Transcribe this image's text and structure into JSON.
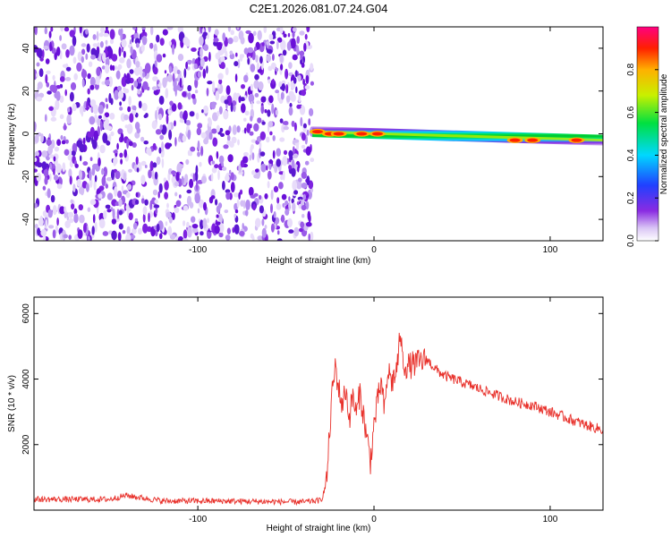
{
  "figure": {
    "title": "C2E1.2026.081.07.24.G04"
  },
  "chart_data": [
    {
      "type": "heatmap",
      "title": "C2E1.2026.081.07.24.G04",
      "xlabel": "Height of straight line (km)",
      "ylabel": "Frequency (Hz)",
      "xlim": [
        -193,
        130
      ],
      "ylim": [
        -50,
        50
      ],
      "x_ticks": [
        -100,
        0,
        100
      ],
      "x_tick_labels": [
        "-100",
        "0",
        "100"
      ],
      "y_ticks": [
        -40,
        -20,
        0,
        20,
        40
      ],
      "y_tick_labels": [
        "-40",
        "-20",
        "0",
        "20",
        "40"
      ],
      "colorbar": {
        "label": "Normalized spectral amplitude",
        "range": [
          0,
          1
        ],
        "ticks": [
          0.0,
          0.2,
          0.4,
          0.6,
          0.8
        ],
        "tick_labels": [
          "0.0",
          "0.2",
          "0.4",
          "0.6",
          "0.8"
        ],
        "colormap": "rainbow (white-violet-blue-cyan-green-yellow-red-magenta)"
      },
      "regions": [
        {
          "description": "speckled noise",
          "x_range": [
            -193,
            -35
          ],
          "freq_range": [
            -50,
            50
          ],
          "amplitude": 0.05
        },
        {
          "description": "signal band",
          "x_range": [
            -35,
            130
          ],
          "freq_center_start": 1,
          "freq_center_end": -3,
          "amplitude_peak": 0.95
        }
      ],
      "peaks": [
        {
          "x": -32,
          "freq": 1
        },
        {
          "x": -25,
          "freq": 0
        },
        {
          "x": -20,
          "freq": 0
        },
        {
          "x": -7,
          "freq": 0
        },
        {
          "x": 2,
          "freq": 0
        },
        {
          "x": 80,
          "freq": -3
        },
        {
          "x": 90,
          "freq": -3
        },
        {
          "x": 115,
          "freq": -3
        }
      ],
      "grid": false
    },
    {
      "type": "line",
      "xlabel": "Height of straight line (km)",
      "ylabel": "SNR (10 * v/v)",
      "xlim": [
        -193,
        130
      ],
      "ylim": [
        0,
        6500
      ],
      "x_ticks": [
        -100,
        0,
        100
      ],
      "x_tick_labels": [
        "-100",
        "0",
        "100"
      ],
      "y_ticks": [
        2000,
        4000,
        6000
      ],
      "y_tick_labels": [
        "2000",
        "4000",
        "6000"
      ],
      "color": "#e8302a",
      "series": [
        {
          "x": [
            -193,
            -150,
            -141,
            -120,
            -90,
            -60,
            -40,
            -30,
            -27,
            -24,
            -22,
            -20,
            -18,
            -16,
            -14,
            -12,
            -10,
            -8,
            -6,
            -4,
            -2,
            0,
            2,
            4,
            6,
            8,
            10,
            12,
            14,
            15,
            16,
            18,
            20,
            25,
            30,
            35,
            40,
            50,
            60,
            70,
            80,
            90,
            100,
            110,
            120,
            130
          ],
          "y": [
            330,
            330,
            450,
            280,
            280,
            260,
            250,
            300,
            800,
            3400,
            4400,
            3700,
            3200,
            3700,
            2800,
            3500,
            2900,
            3600,
            2900,
            2200,
            1500,
            2600,
            3300,
            3900,
            3000,
            4300,
            3900,
            4100,
            4700,
            5600,
            4600,
            4400,
            4400,
            4500,
            4600,
            4300,
            4100,
            3900,
            3700,
            3500,
            3300,
            3200,
            3000,
            2800,
            2600,
            2450
          ]
        }
      ],
      "grid": false
    }
  ]
}
